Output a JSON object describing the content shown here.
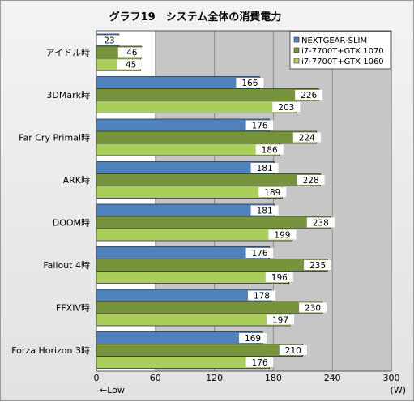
{
  "chart_data": {
    "type": "bar",
    "orientation": "horizontal",
    "title": "グラフ19　システム全体の消費電力",
    "categories": [
      "アイドル時",
      "3DMark時",
      "Far Cry Primal時",
      "ARK時",
      "DOOM時",
      "Fallout 4時",
      "FFXIV時",
      "Forza Horizon 3時"
    ],
    "series": [
      {
        "name": "NEXTGEAR-SLIM",
        "color": "#4f81bd",
        "values": [
          23,
          166,
          176,
          181,
          181,
          176,
          178,
          169
        ]
      },
      {
        "name": "i7-7700T+GTX 1070",
        "color": "#77933c",
        "values": [
          46,
          226,
          224,
          228,
          238,
          235,
          230,
          210
        ]
      },
      {
        "name": "i7-7700T+GTX 1060",
        "color": "#a9cf5a",
        "values": [
          45,
          203,
          186,
          189,
          199,
          196,
          197,
          176
        ]
      }
    ],
    "xlim": [
      0,
      300
    ],
    "xticks": [
      0,
      60,
      120,
      180,
      240,
      300
    ],
    "unit_label": "(W)",
    "direction_label": "←Low",
    "legend_position": "top-right",
    "grid": true
  }
}
